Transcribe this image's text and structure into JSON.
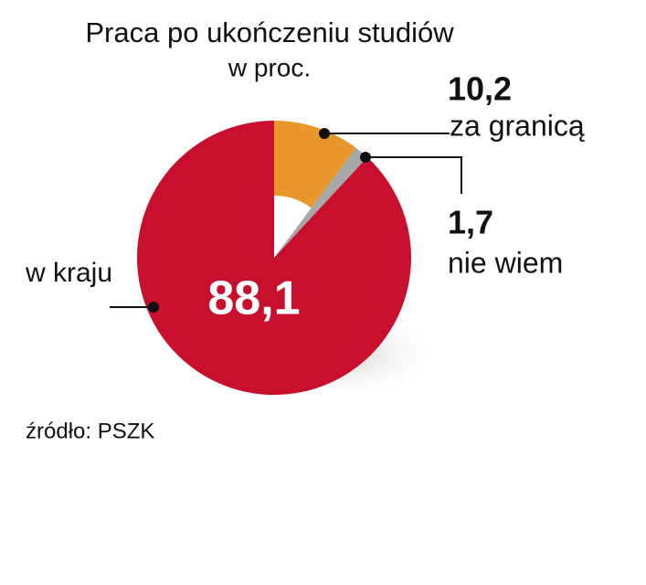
{
  "chart_data": {
    "type": "pie",
    "title": "Praca po ukończeniu studiów",
    "subtitle": "w proc.",
    "categories": [
      "za granicą",
      "nie wiem",
      "w kraju"
    ],
    "values": [
      10.2,
      1.7,
      88.1
    ],
    "value_labels": [
      "10,2",
      "1,7",
      "88,1"
    ],
    "colors": [
      "#e8972a",
      "#a8a8a8",
      "#c8102e"
    ],
    "source": "źródło: PSZK"
  }
}
